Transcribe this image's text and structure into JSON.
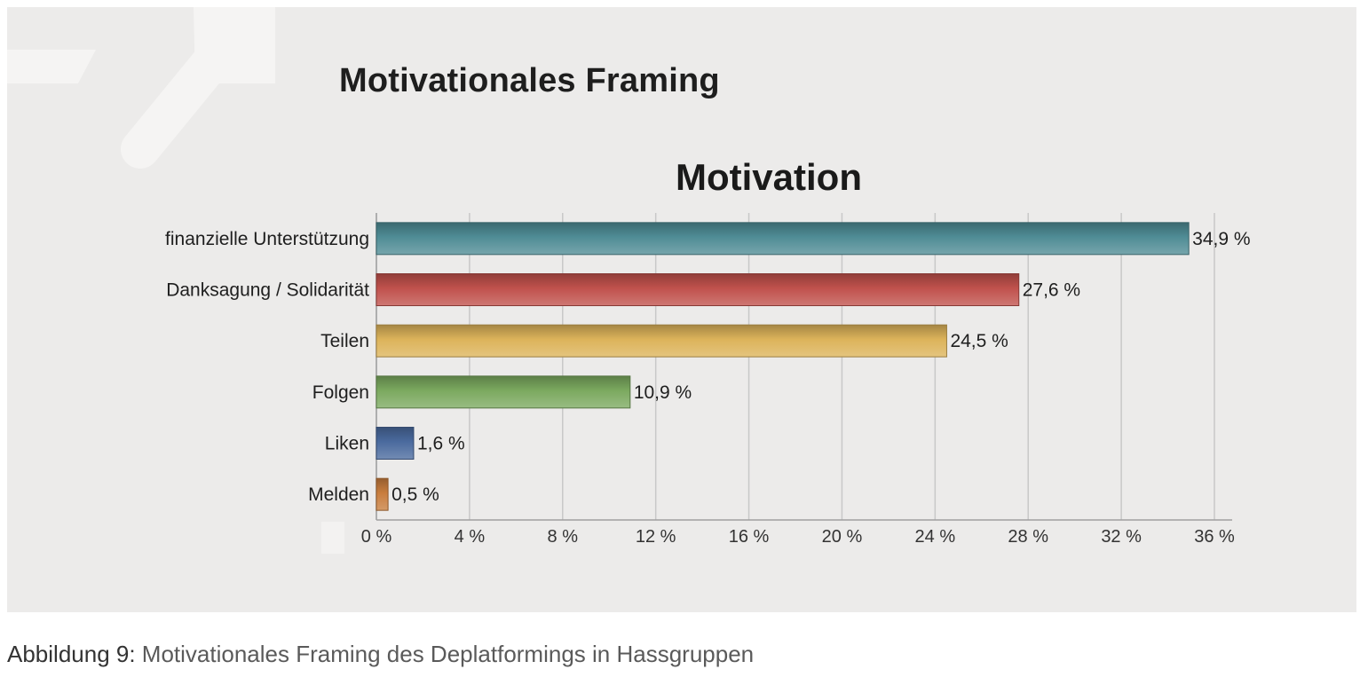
{
  "slide": {
    "title": "Motivationales Framing"
  },
  "caption": {
    "label": "Abbildung 9:",
    "text": "Motivationales Framing des Deplatformings in Hassgruppen"
  },
  "chart_data": {
    "type": "bar",
    "orientation": "horizontal",
    "title": "Motivation",
    "xlabel": "",
    "ylabel": "",
    "categories": [
      "finanzielle Unterstützung",
      "Danksagung / Solidarität",
      "Teilen",
      "Folgen",
      "Liken",
      "Melden"
    ],
    "values": [
      34.9,
      27.6,
      24.5,
      10.9,
      1.6,
      0.5
    ],
    "value_labels": [
      "34,9 %",
      "27,6 %",
      "24,5 %",
      "10,9 %",
      "1,6 %",
      "0,5 %"
    ],
    "bar_colors": [
      "#4f8c95",
      "#c0514c",
      "#dcb35a",
      "#7ba95f",
      "#4a6a9e",
      "#c87d3e"
    ],
    "xlim": [
      0,
      36
    ],
    "xticks": [
      0,
      4,
      8,
      12,
      16,
      20,
      24,
      28,
      32,
      36
    ],
    "xtick_labels": [
      "0 %",
      "4 %",
      "8 %",
      "12 %",
      "16 %",
      "20 %",
      "24 %",
      "28 %",
      "32 %",
      "36 %"
    ],
    "grid": "vertical",
    "legend": "none"
  }
}
